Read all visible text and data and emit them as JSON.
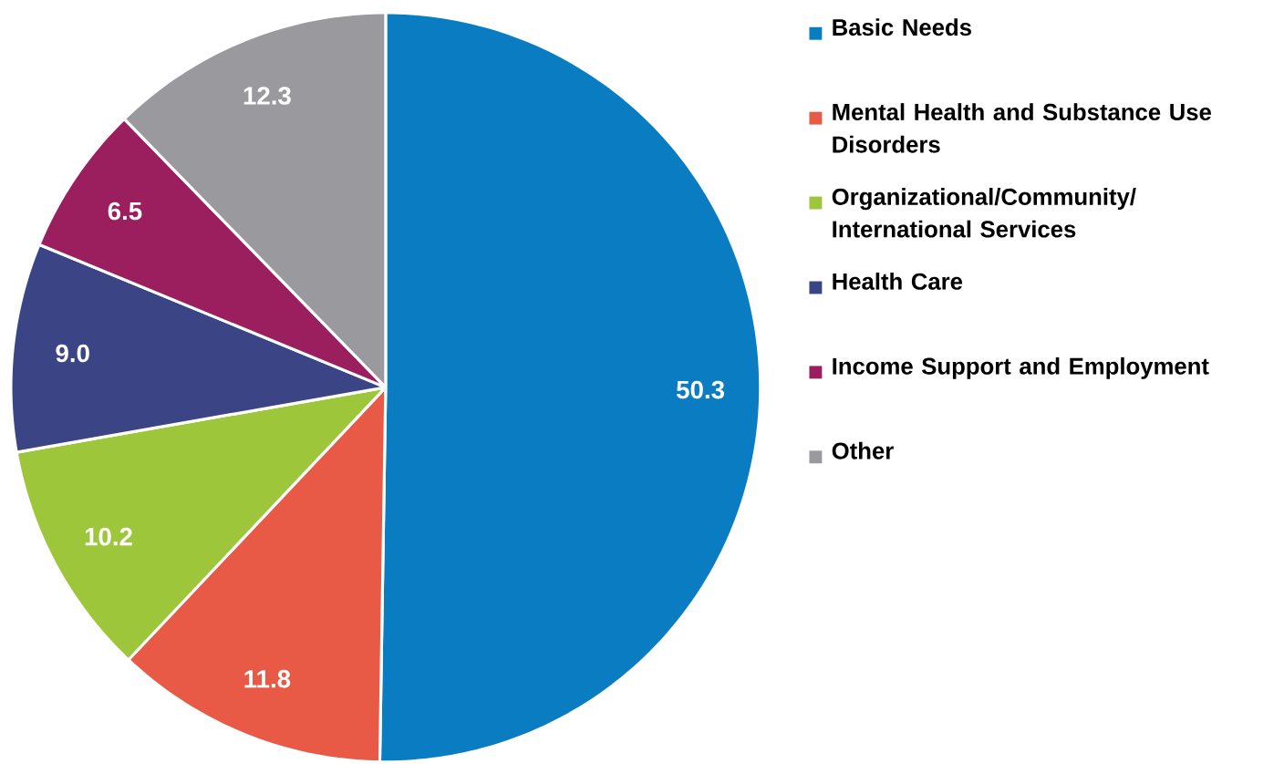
{
  "chart_data": {
    "type": "pie",
    "categories": [
      "Basic Needs",
      "Mental Health and Substance Use Disorders",
      "Organizational/Community/ International Services",
      "Health Care",
      "Income Support and Employment",
      "Other"
    ],
    "values": [
      50.3,
      11.8,
      10.2,
      9.0,
      6.5,
      12.3
    ],
    "value_labels": [
      "50.3",
      "11.8",
      "10.2",
      "9.0",
      "6.5",
      "12.3"
    ],
    "colors": [
      "#0a7dc2",
      "#e85a46",
      "#9dc63b",
      "#3b4585",
      "#9b1f5e",
      "#9a9a9e"
    ],
    "legend": "right"
  }
}
